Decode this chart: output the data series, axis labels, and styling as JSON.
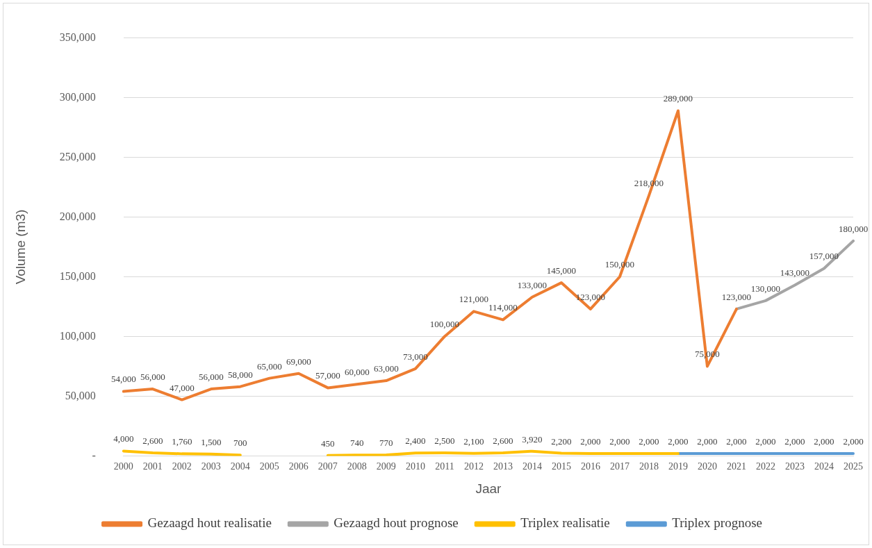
{
  "chart_data": {
    "type": "line",
    "xlabel": "Jaar",
    "ylabel": "Volume (m3)",
    "categories": [
      "2000",
      "2001",
      "2002",
      "2003",
      "2004",
      "2005",
      "2006",
      "2007",
      "2008",
      "2009",
      "2010",
      "2011",
      "2012",
      "2013",
      "2014",
      "2015",
      "2016",
      "2017",
      "2018",
      "2019",
      "2020",
      "2021",
      "2022",
      "2023",
      "2024",
      "2025"
    ],
    "series": [
      {
        "name": "Gezaagd hout realisatie",
        "color": "#ed7d31",
        "values": [
          54000,
          56000,
          47000,
          56000,
          58000,
          65000,
          69000,
          57000,
          60000,
          63000,
          73000,
          100000,
          121000,
          114000,
          133000,
          145000,
          123000,
          150000,
          218000,
          289000,
          75000,
          123000,
          null,
          null,
          null,
          null
        ],
        "value_labels": [
          "54,000",
          "56,000",
          "47,000",
          "56,000",
          "58,000",
          "65,000",
          "69,000",
          "57,000",
          "60,000",
          "63,000",
          "73,000",
          "100,000",
          "121,000",
          "114,000",
          "133,000",
          "145,000",
          "123,000",
          "150,000",
          "218,000",
          "289,000",
          "75,000",
          "123,000",
          null,
          null,
          null,
          null
        ]
      },
      {
        "name": "Gezaagd hout prognose",
        "color": "#a5a5a5",
        "values": [
          null,
          null,
          null,
          null,
          null,
          null,
          null,
          null,
          null,
          null,
          null,
          null,
          null,
          null,
          null,
          null,
          null,
          null,
          null,
          null,
          null,
          123000,
          130000,
          143000,
          157000,
          180000
        ],
        "value_labels": [
          null,
          null,
          null,
          null,
          null,
          null,
          null,
          null,
          null,
          null,
          null,
          null,
          null,
          null,
          null,
          null,
          null,
          null,
          null,
          null,
          null,
          null,
          "130,000",
          "143,000",
          "157,000",
          "180,000"
        ]
      },
      {
        "name": "Triplex realisatie",
        "color": "#ffc000",
        "values": [
          4000,
          2600,
          1760,
          1500,
          700,
          null,
          null,
          450,
          740,
          770,
          2400,
          2500,
          2100,
          2600,
          3920,
          2200,
          2000,
          2000,
          2000,
          2000,
          null,
          null,
          null,
          null,
          null,
          null
        ],
        "value_labels": [
          "4,000",
          "2,600",
          "1,760",
          "1,500",
          "700",
          null,
          null,
          "450",
          "740",
          "770",
          "2,400",
          "2,500",
          "2,100",
          "2,600",
          "3,920",
          "2,200",
          "2,000",
          "2,000",
          "2,000",
          "2,000",
          null,
          null,
          null,
          null,
          null,
          null
        ]
      },
      {
        "name": "Triplex prognose",
        "color": "#5b9bd5",
        "values": [
          null,
          null,
          null,
          null,
          null,
          null,
          null,
          null,
          null,
          null,
          null,
          null,
          null,
          null,
          null,
          null,
          null,
          null,
          null,
          2000,
          2000,
          2000,
          2000,
          2000,
          2000,
          2000
        ],
        "value_labels": [
          null,
          null,
          null,
          null,
          null,
          null,
          null,
          null,
          null,
          null,
          null,
          null,
          null,
          null,
          null,
          null,
          null,
          null,
          null,
          null,
          "2,000",
          "2,000",
          "2,000",
          "2,000",
          "2,000",
          "2,000"
        ]
      }
    ],
    "ylim": [
      0,
      350000
    ],
    "yticks": [
      {
        "value": 0,
        "label": "-"
      },
      {
        "value": 50000,
        "label": "50,000"
      },
      {
        "value": 100000,
        "label": "100,000"
      },
      {
        "value": 150000,
        "label": "150,000"
      },
      {
        "value": 200000,
        "label": "200,000"
      },
      {
        "value": 250000,
        "label": "250,000"
      },
      {
        "value": 300000,
        "label": "300,000"
      },
      {
        "value": 350000,
        "label": "350,000"
      }
    ],
    "grid": "y",
    "legend": "bottom",
    "marker": "none",
    "line_style": "solid"
  }
}
